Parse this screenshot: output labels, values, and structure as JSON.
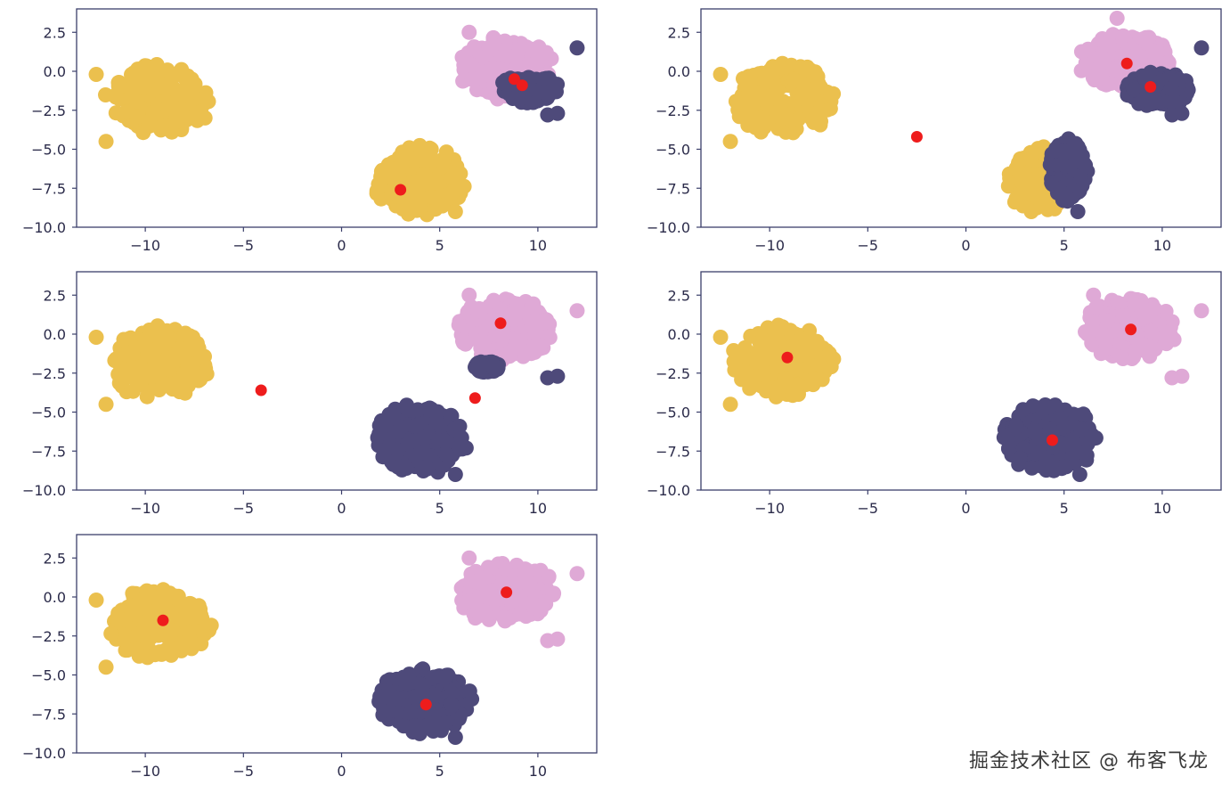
{
  "colors": {
    "cluster_a": "#ebc04e",
    "cluster_b": "#4e4a7a",
    "cluster_c": "#dfa9d6",
    "centroid": "#ee1c1c",
    "axis": "#3b3f6b"
  },
  "watermark": "掘金技术社区 @ 布客飞龙",
  "chart_data": [
    {
      "type": "scatter",
      "panel": "row1-col1",
      "xlim": [
        -13.5,
        13
      ],
      "ylim": [
        -10,
        4
      ],
      "xticks": [
        -10,
        -5,
        0,
        5,
        10
      ],
      "yticks": [
        2.5,
        0.0,
        -2.5,
        -5.0,
        -7.5,
        -10.0
      ],
      "blobs": [
        {
          "cluster": "cluster_a",
          "cx": -9.3,
          "cy": -1.8,
          "rx": 2.6,
          "ry": 2.3
        },
        {
          "cluster": "cluster_a",
          "cx": 4.0,
          "cy": -7.0,
          "rx": 2.4,
          "ry": 2.2
        },
        {
          "cluster": "cluster_c",
          "cx": 8.4,
          "cy": 0.2,
          "rx": 2.4,
          "ry": 2.0
        },
        {
          "cluster": "cluster_b",
          "cx": 9.6,
          "cy": -1.0,
          "rx": 1.4,
          "ry": 1.0,
          "clip_above": -0.4
        }
      ],
      "outliers": [
        {
          "cluster": "cluster_a",
          "x": -12.0,
          "y": -4.5
        },
        {
          "cluster": "cluster_a",
          "x": -12.5,
          "y": -0.2
        },
        {
          "cluster": "cluster_b",
          "x": 12.0,
          "y": 1.5
        },
        {
          "cluster": "cluster_b",
          "x": 10.5,
          "y": -2.8
        },
        {
          "cluster": "cluster_b",
          "x": 11.0,
          "y": -2.7
        },
        {
          "cluster": "cluster_c",
          "x": 6.5,
          "y": 2.5
        },
        {
          "cluster": "cluster_a",
          "x": 5.8,
          "y": -9.0
        }
      ],
      "centroids": [
        [
          3.0,
          -7.6
        ],
        [
          8.8,
          -0.5
        ],
        [
          9.2,
          -0.9
        ]
      ]
    },
    {
      "type": "scatter",
      "panel": "row1-col2",
      "xlim": [
        -13.5,
        13
      ],
      "ylim": [
        -10,
        4
      ],
      "xticks": [
        -10,
        -5,
        0,
        5,
        10
      ],
      "yticks": [
        2.5,
        0.0,
        -2.5,
        -5.0,
        -7.5,
        -10.0
      ],
      "blobs": [
        {
          "cluster": "cluster_a",
          "cx": -9.3,
          "cy": -1.8,
          "rx": 2.6,
          "ry": 2.3
        },
        {
          "cluster": "cluster_a",
          "cx": 3.7,
          "cy": -7.0,
          "rx": 1.5,
          "ry": 2.1
        },
        {
          "cluster": "cluster_b",
          "cx": 5.2,
          "cy": -6.4,
          "rx": 1.0,
          "ry": 2.0
        },
        {
          "cluster": "cluster_c",
          "cx": 8.1,
          "cy": 0.7,
          "rx": 2.3,
          "ry": 1.8
        },
        {
          "cluster": "cluster_b",
          "cx": 9.8,
          "cy": -1.2,
          "rx": 1.6,
          "ry": 1.1
        }
      ],
      "outliers": [
        {
          "cluster": "cluster_a",
          "x": -12.0,
          "y": -4.5
        },
        {
          "cluster": "cluster_a",
          "x": -12.5,
          "y": -0.2
        },
        {
          "cluster": "cluster_b",
          "x": 12.0,
          "y": 1.5
        },
        {
          "cluster": "cluster_b",
          "x": 10.5,
          "y": -2.8
        },
        {
          "cluster": "cluster_b",
          "x": 11.0,
          "y": -2.7
        },
        {
          "cluster": "cluster_c",
          "x": 7.7,
          "y": 3.4
        },
        {
          "cluster": "cluster_b",
          "x": 5.7,
          "y": -9.0
        }
      ],
      "centroids": [
        [
          -2.5,
          -4.2
        ],
        [
          8.2,
          0.5
        ],
        [
          9.4,
          -1.0
        ]
      ]
    },
    {
      "type": "scatter",
      "panel": "row2-col1",
      "xlim": [
        -13.5,
        13
      ],
      "ylim": [
        -10,
        4
      ],
      "xticks": [
        -10,
        -5,
        0,
        5,
        10
      ],
      "yticks": [
        2.5,
        0.0,
        -2.5,
        -5.0,
        -7.5,
        -10.0
      ],
      "blobs": [
        {
          "cluster": "cluster_a",
          "cx": -9.3,
          "cy": -1.8,
          "rx": 2.6,
          "ry": 2.3
        },
        {
          "cluster": "cluster_b",
          "cx": 4.0,
          "cy": -6.7,
          "rx": 2.4,
          "ry": 2.2
        },
        {
          "cluster": "cluster_c",
          "cx": 8.3,
          "cy": 0.3,
          "rx": 2.4,
          "ry": 2.0
        },
        {
          "cluster": "cluster_b",
          "cx": 7.4,
          "cy": -2.1,
          "rx": 0.6,
          "ry": 0.35
        }
      ],
      "outliers": [
        {
          "cluster": "cluster_a",
          "x": -12.0,
          "y": -4.5
        },
        {
          "cluster": "cluster_a",
          "x": -12.5,
          "y": -0.2
        },
        {
          "cluster": "cluster_c",
          "x": 12.0,
          "y": 1.5
        },
        {
          "cluster": "cluster_b",
          "x": 10.5,
          "y": -2.8
        },
        {
          "cluster": "cluster_b",
          "x": 11.0,
          "y": -2.7
        },
        {
          "cluster": "cluster_c",
          "x": 6.5,
          "y": 2.5
        },
        {
          "cluster": "cluster_b",
          "x": 5.8,
          "y": -9.0
        }
      ],
      "centroids": [
        [
          -4.1,
          -3.6
        ],
        [
          8.1,
          0.7
        ],
        [
          6.8,
          -4.1
        ]
      ]
    },
    {
      "type": "scatter",
      "panel": "row2-col2",
      "xlim": [
        -13.5,
        13
      ],
      "ylim": [
        -10,
        4
      ],
      "xticks": [
        -10,
        -5,
        0,
        5,
        10
      ],
      "yticks": [
        2.5,
        0.0,
        -2.5,
        -5.0,
        -7.5,
        -10.0
      ],
      "blobs": [
        {
          "cluster": "cluster_a",
          "cx": -9.3,
          "cy": -1.8,
          "rx": 2.6,
          "ry": 2.3
        },
        {
          "cluster": "cluster_b",
          "cx": 4.2,
          "cy": -6.7,
          "rx": 2.4,
          "ry": 2.2
        },
        {
          "cluster": "cluster_c",
          "cx": 8.4,
          "cy": 0.3,
          "rx": 2.4,
          "ry": 2.0
        }
      ],
      "outliers": [
        {
          "cluster": "cluster_a",
          "x": -12.0,
          "y": -4.5
        },
        {
          "cluster": "cluster_a",
          "x": -12.5,
          "y": -0.2
        },
        {
          "cluster": "cluster_c",
          "x": 12.0,
          "y": 1.5
        },
        {
          "cluster": "cluster_c",
          "x": 10.5,
          "y": -2.8
        },
        {
          "cluster": "cluster_c",
          "x": 11.0,
          "y": -2.7
        },
        {
          "cluster": "cluster_c",
          "x": 6.5,
          "y": 2.5
        },
        {
          "cluster": "cluster_b",
          "x": 5.8,
          "y": -9.0
        }
      ],
      "centroids": [
        [
          -9.1,
          -1.5
        ],
        [
          4.4,
          -6.8
        ],
        [
          8.4,
          0.3
        ]
      ]
    },
    {
      "type": "scatter",
      "panel": "row3-col1",
      "xlim": [
        -13.5,
        13
      ],
      "ylim": [
        -10,
        4
      ],
      "xticks": [
        -10,
        -5,
        0,
        5,
        10
      ],
      "yticks": [
        2.5,
        0.0,
        -2.5,
        -5.0,
        -7.5,
        -10.0
      ],
      "blobs": [
        {
          "cluster": "cluster_a",
          "cx": -9.3,
          "cy": -1.8,
          "rx": 2.6,
          "ry": 2.3
        },
        {
          "cluster": "cluster_b",
          "cx": 4.2,
          "cy": -6.7,
          "rx": 2.4,
          "ry": 2.2
        },
        {
          "cluster": "cluster_c",
          "cx": 8.4,
          "cy": 0.3,
          "rx": 2.4,
          "ry": 2.0
        }
      ],
      "outliers": [
        {
          "cluster": "cluster_a",
          "x": -12.0,
          "y": -4.5
        },
        {
          "cluster": "cluster_a",
          "x": -12.5,
          "y": -0.2
        },
        {
          "cluster": "cluster_c",
          "x": 12.0,
          "y": 1.5
        },
        {
          "cluster": "cluster_c",
          "x": 10.5,
          "y": -2.8
        },
        {
          "cluster": "cluster_c",
          "x": 11.0,
          "y": -2.7
        },
        {
          "cluster": "cluster_c",
          "x": 6.5,
          "y": 2.5
        },
        {
          "cluster": "cluster_b",
          "x": 5.8,
          "y": -9.0
        }
      ],
      "centroids": [
        [
          -9.1,
          -1.5
        ],
        [
          4.3,
          -6.9
        ],
        [
          8.4,
          0.3
        ]
      ]
    }
  ]
}
